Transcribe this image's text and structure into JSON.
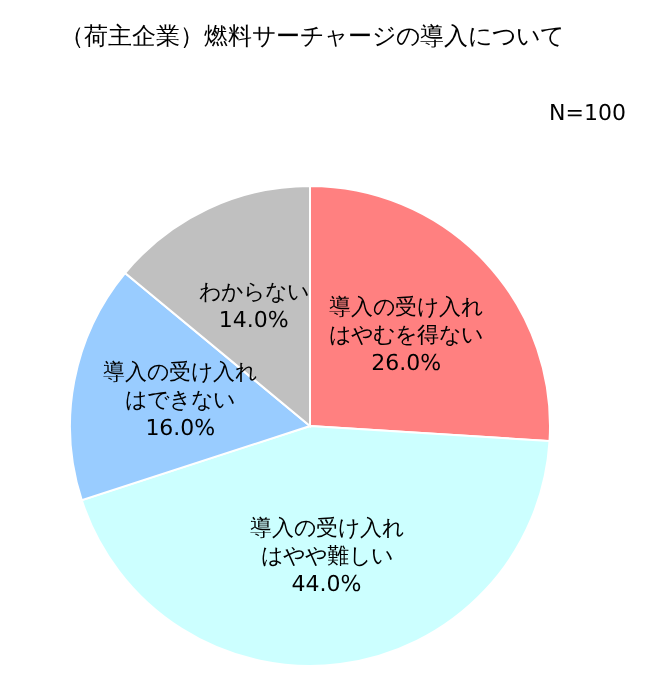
{
  "chart_data": {
    "type": "pie",
    "title": "（荷主企業）燃料サーチャージの導入について",
    "annotations": [
      "N=100"
    ],
    "categories": [
      "導入の受け入れはやむを得ない",
      "導入の受け入れはやや難しい",
      "導入の受け入れはできない",
      "わからない"
    ],
    "values": [
      26,
      44,
      16,
      14
    ],
    "value_labels": [
      "26.0%",
      "44.0%",
      "16.0%",
      "14.0%"
    ],
    "colors": [
      "#ff8080",
      "#ccffff",
      "#99ccff",
      "#c0c0c0"
    ],
    "legend": false
  }
}
